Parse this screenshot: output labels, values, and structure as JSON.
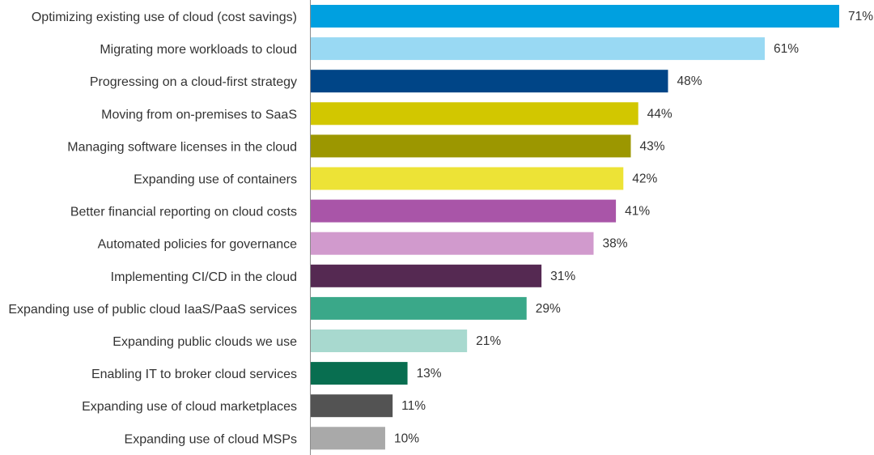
{
  "chart_data": {
    "type": "bar",
    "orientation": "horizontal",
    "title": "",
    "xlabel": "",
    "ylabel": "",
    "xlim": [
      0,
      71
    ],
    "grid": false,
    "legend": "none",
    "value_suffix": "%",
    "categories": [
      "Optimizing existing use of cloud (cost savings)",
      "Migrating more workloads to cloud",
      "Progressing on a cloud-first strategy",
      "Moving from on-premises to SaaS",
      "Managing software licenses in the cloud",
      "Expanding use of containers",
      "Better financial reporting on cloud costs",
      "Automated policies for governance",
      "Implementing CI/CD in the cloud",
      "Expanding use of public cloud IaaS/PaaS services",
      "Expanding public clouds we use",
      "Enabling IT to broker cloud services",
      "Expanding use of cloud marketplaces",
      "Expanding use of cloud MSPs"
    ],
    "values": [
      71,
      61,
      48,
      44,
      43,
      42,
      41,
      38,
      31,
      29,
      21,
      13,
      11,
      10
    ],
    "labels": [
      "71%",
      "61%",
      "48%",
      "44%",
      "43%",
      "42%",
      "41%",
      "38%",
      "31%",
      "29%",
      "21%",
      "13%",
      "11%",
      "10%"
    ],
    "colors": [
      "#00a0e0",
      "#99d9f3",
      "#004587",
      "#d2c700",
      "#9c9700",
      "#ede336",
      "#a955a8",
      "#d19acd",
      "#552952",
      "#3aa889",
      "#a8d9cf",
      "#086e50",
      "#535353",
      "#a9a9a9"
    ]
  }
}
